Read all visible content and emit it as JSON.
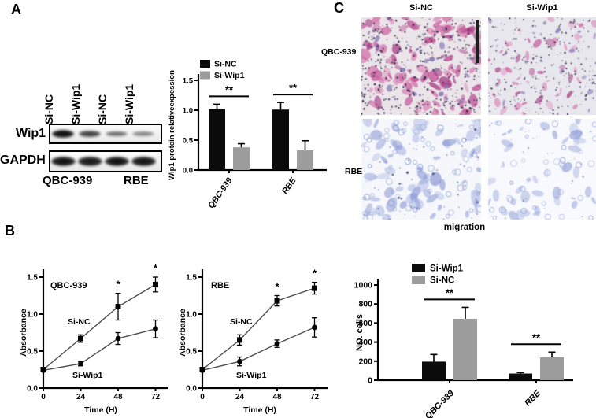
{
  "panels": {
    "a": "A",
    "b": "B",
    "c": "C"
  },
  "panel_a": {
    "blot": {
      "lane_labels": [
        "Si-NC",
        "Si-Wip1",
        "Si-NC",
        "Si-Wip1"
      ],
      "row_labels": [
        "Wip1",
        "GAPDH"
      ],
      "group_labels": [
        "QBC-939",
        "RBE"
      ],
      "wip1_band_intensities": [
        0.95,
        0.65,
        0.42,
        0.28
      ],
      "gapdh_band_intensities": [
        0.92,
        0.88,
        0.92,
        0.9
      ]
    }
  },
  "panel_c": {
    "column_headers": [
      "Si-NC",
      "Si-Wip1"
    ],
    "row_labels": [
      "QBC-939",
      "RBE"
    ],
    "caption": "migration",
    "stain_colors": {
      "qbc939_stain_pink": "#c9559b",
      "qbc939_background": "#ebe5ea",
      "rbe_stain_blue": "#8d9dd6",
      "rbe_background": "#f6f7fb"
    }
  },
  "chart_data": [
    {
      "id": "wip1_expression_bar",
      "type": "bar",
      "title": "",
      "ylabel": "Wip1 protein relativeexpession",
      "ylim": [
        0,
        1.5
      ],
      "yticks": [
        0,
        0.5,
        1,
        1.5
      ],
      "categories": [
        "QBC-939",
        "RBE"
      ],
      "series": [
        {
          "name": "Si-NC",
          "color": "#0b0b0b",
          "values": [
            1.02,
            1.01
          ],
          "errors": [
            0.08,
            0.12
          ]
        },
        {
          "name": "Si-Wip1",
          "color": "#9c9c9c",
          "values": [
            0.38,
            0.33
          ],
          "errors": [
            0.06,
            0.16
          ]
        }
      ],
      "significance": [
        "**",
        "**"
      ],
      "legend_position": "top-left"
    },
    {
      "id": "proliferation_qbc939",
      "type": "line",
      "title": "QBC-939",
      "xlabel": "Time (H)",
      "ylabel": "Absorbance",
      "x": [
        0,
        24,
        48,
        72
      ],
      "ylim": [
        0,
        1.5
      ],
      "yticks": [
        0,
        0.5,
        1,
        1.5
      ],
      "series": [
        {
          "name": "Si-NC",
          "marker": "square",
          "values": [
            0.25,
            0.67,
            1.1,
            1.4
          ],
          "errors": [
            0.02,
            0.05,
            0.18,
            0.1
          ]
        },
        {
          "name": "Si-Wip1",
          "marker": "circle",
          "values": [
            0.24,
            0.33,
            0.67,
            0.8
          ],
          "errors": [
            0.02,
            0.03,
            0.08,
            0.12
          ]
        }
      ],
      "significance": {
        "symbol": "*",
        "at_x": [
          48,
          72
        ]
      }
    },
    {
      "id": "proliferation_rbe",
      "type": "line",
      "title": "RBE",
      "xlabel": "Time (H)",
      "ylabel": "Absorbance",
      "x": [
        0,
        24,
        48,
        72
      ],
      "ylim": [
        0,
        1.5
      ],
      "yticks": [
        0,
        0.5,
        1,
        1.5
      ],
      "series": [
        {
          "name": "Si-NC",
          "marker": "square",
          "values": [
            0.25,
            0.65,
            1.18,
            1.35
          ],
          "errors": [
            0.02,
            0.07,
            0.07,
            0.08
          ]
        },
        {
          "name": "Si-Wip1",
          "marker": "circle",
          "values": [
            0.24,
            0.36,
            0.6,
            0.82
          ],
          "errors": [
            0.02,
            0.06,
            0.05,
            0.13
          ]
        }
      ],
      "significance": {
        "symbol": "*",
        "at_x": [
          48,
          72
        ]
      }
    },
    {
      "id": "migration_cells_bar",
      "type": "bar",
      "title": "",
      "ylabel": "NO. cells",
      "ylim": [
        0,
        1000
      ],
      "yticks": [
        0,
        200,
        400,
        600,
        800,
        1000
      ],
      "categories": [
        "QBC-939",
        "RBE"
      ],
      "series": [
        {
          "name": "Si-Wip1",
          "color": "#0b0b0b",
          "values": [
            195,
            70
          ],
          "errors": [
            75,
            10
          ]
        },
        {
          "name": "Si-NC",
          "color": "#9c9c9c",
          "values": [
            645,
            240
          ],
          "errors": [
            120,
            55
          ]
        }
      ],
      "significance": [
        "**",
        "**"
      ],
      "legend_position": "top-left"
    }
  ]
}
